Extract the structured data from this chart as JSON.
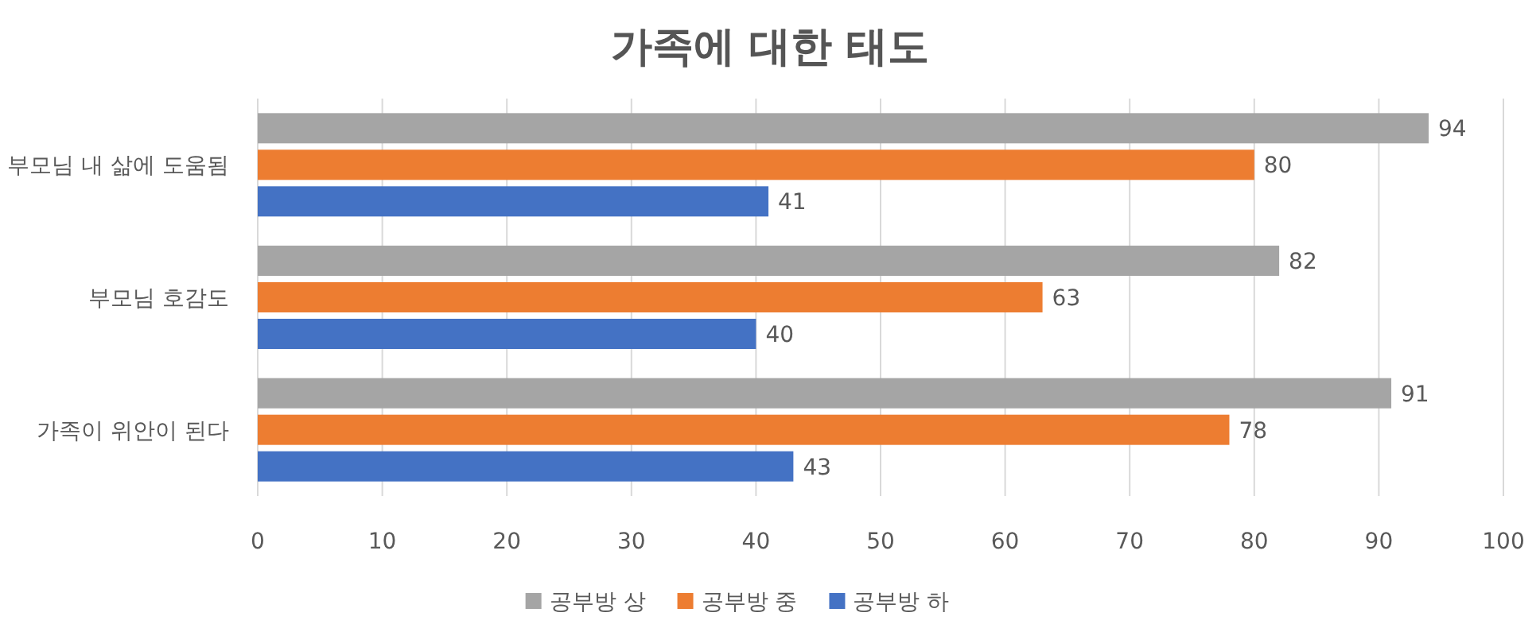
{
  "chart_data": {
    "type": "bar",
    "orientation": "horizontal",
    "title": "가족에 대한 태도",
    "categories": [
      "부모님 내 삶에 도움됨",
      "부모님 호감도",
      "가족이 위안이 된다"
    ],
    "series": [
      {
        "name": "공부방 상",
        "color": "#a5a5a5",
        "values": [
          94,
          82,
          91
        ]
      },
      {
        "name": "공부방 중",
        "color": "#ed7d31",
        "values": [
          80,
          63,
          78
        ]
      },
      {
        "name": "공부방 하",
        "color": "#4472c4",
        "values": [
          41,
          40,
          43
        ]
      }
    ],
    "xlim": [
      0,
      100
    ],
    "xticks": [
      0,
      10,
      20,
      30,
      40,
      50,
      60,
      70,
      80,
      90,
      100
    ],
    "grid": "x",
    "legend": "bottom",
    "data_labels": true
  }
}
